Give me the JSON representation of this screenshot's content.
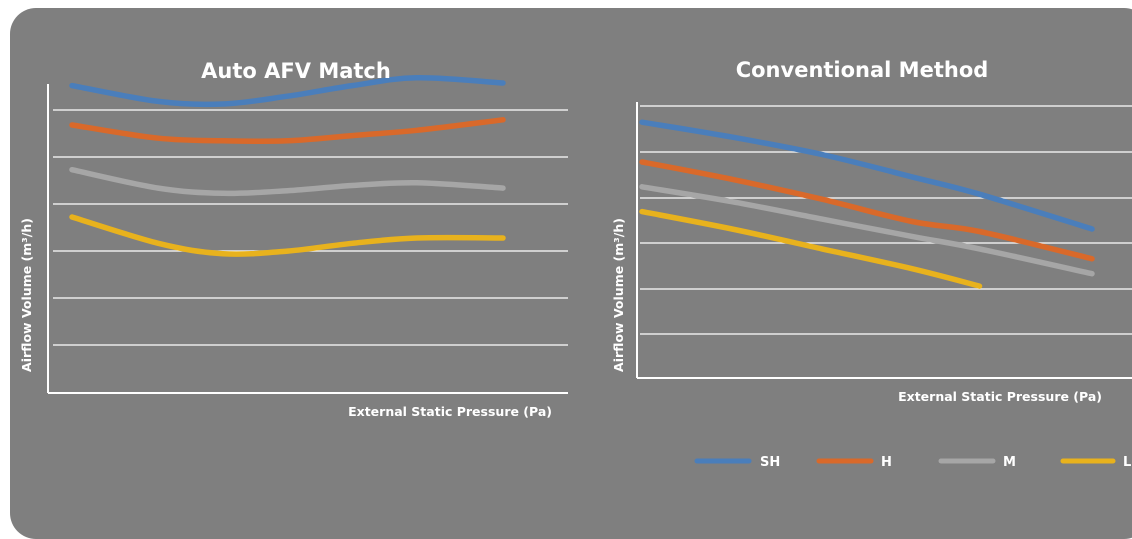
{
  "colors": {
    "panel": "#7f7f7f",
    "axis": "#ffffff",
    "grid": "#ffffff"
  },
  "chart_data": [
    {
      "type": "line",
      "title": "Auto AFV Match",
      "xlabel": "External Static Pressure (Pa)",
      "ylabel": "Airflow Volume (m³/h)",
      "x": [
        0,
        0.2,
        0.35,
        0.5,
        0.65,
        0.8,
        1.0
      ],
      "ylim": [
        0,
        6.3
      ],
      "grid": true,
      "legend": "none",
      "series": [
        {
          "name": "SH",
          "color": "#4a7ebb",
          "values": [
            5.85,
            5.55,
            5.5,
            5.65,
            5.85,
            6.0,
            5.9
          ]
        },
        {
          "name": "H",
          "color": "#d9692a",
          "values": [
            5.1,
            4.85,
            4.8,
            4.8,
            4.9,
            5.0,
            5.2
          ]
        },
        {
          "name": "M",
          "color": "#a6a6a6",
          "values": [
            4.25,
            3.9,
            3.8,
            3.85,
            3.95,
            4.0,
            3.9
          ]
        },
        {
          "name": "L",
          "color": "#e8b21d",
          "values": [
            3.35,
            2.85,
            2.65,
            2.7,
            2.85,
            2.95,
            2.95
          ]
        }
      ]
    },
    {
      "type": "line",
      "title": "Conventional Method",
      "xlabel": "External Static Pressure (Pa)",
      "ylabel": "Airflow Volume (m³/h)",
      "x": [
        0,
        0.2,
        0.4,
        0.6,
        0.75,
        1.0
      ],
      "ylim": [
        0,
        6.0
      ],
      "grid": true,
      "legend": "bottom",
      "series": [
        {
          "name": "SH",
          "color": "#4a7ebb",
          "values": [
            5.15,
            4.85,
            4.5,
            4.05,
            3.7,
            3.0
          ]
        },
        {
          "name": "H",
          "color": "#d9692a",
          "values": [
            4.35,
            4.0,
            3.6,
            3.15,
            2.95,
            2.4
          ]
        },
        {
          "name": "M",
          "color": "#a6a6a6",
          "values": [
            3.85,
            3.55,
            3.2,
            2.85,
            2.6,
            2.1
          ]
        },
        {
          "name": "L",
          "color": "#e8b21d",
          "values": [
            3.35,
            3.0,
            2.6,
            2.2,
            1.85,
            null
          ]
        }
      ]
    }
  ],
  "legend_items": [
    "SH",
    "H",
    "M",
    "L"
  ]
}
